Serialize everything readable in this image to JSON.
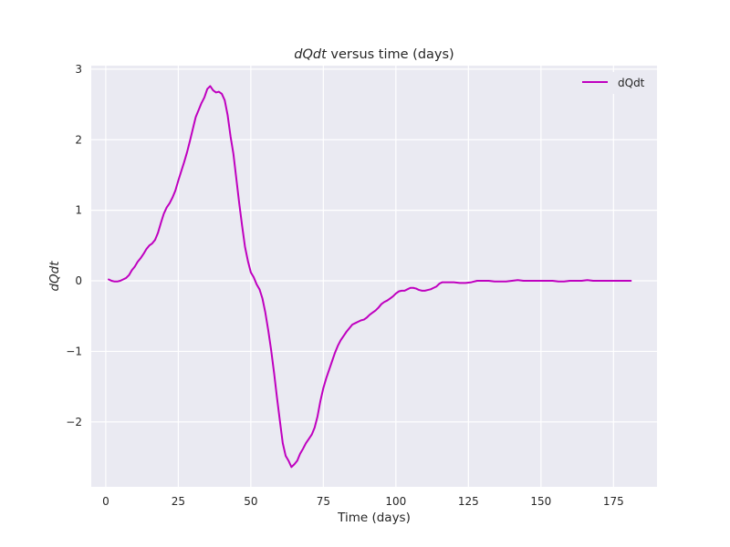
{
  "chart_data": {
    "type": "line",
    "title_math": "dQdt",
    "title_text": " versus time (days)",
    "xlabel": "Time (days)",
    "ylabel": "dQdt",
    "xlim": [
      -5,
      190
    ],
    "ylim": [
      -2.92,
      3.05
    ],
    "x_ticks": [
      0,
      25,
      50,
      75,
      100,
      125,
      150,
      175
    ],
    "x_tick_labels": [
      "0",
      "25",
      "50",
      "75",
      "100",
      "125",
      "150",
      "175"
    ],
    "y_ticks": [
      -2,
      -1,
      0,
      1,
      2,
      3
    ],
    "y_tick_labels": [
      "−2",
      "−1",
      "0",
      "1",
      "2",
      "3"
    ],
    "grid": true,
    "background": "#eaeaf2",
    "legend_position": "upper right",
    "series": [
      {
        "name": "dQdt",
        "color": "#bf00bf",
        "x": [
          1,
          2,
          3,
          4,
          5,
          6,
          7,
          8,
          9,
          10,
          11,
          12,
          13,
          14,
          15,
          16,
          17,
          18,
          19,
          20,
          21,
          22,
          23,
          24,
          25,
          26,
          27,
          28,
          29,
          30,
          31,
          32,
          33,
          34,
          35,
          36,
          37,
          38,
          39,
          40,
          41,
          42,
          43,
          44,
          45,
          46,
          47,
          48,
          49,
          50,
          51,
          52,
          53,
          54,
          55,
          56,
          57,
          58,
          59,
          60,
          61,
          62,
          63,
          64,
          65,
          66,
          67,
          68,
          69,
          70,
          71,
          72,
          73,
          74,
          75,
          76,
          77,
          78,
          79,
          80,
          81,
          82,
          83,
          84,
          85,
          86,
          87,
          88,
          89,
          90,
          91,
          92,
          93,
          94,
          95,
          96,
          97,
          98,
          99,
          100,
          101,
          102,
          103,
          104,
          105,
          106,
          107,
          108,
          109,
          110,
          111,
          112,
          113,
          114,
          115,
          116,
          117,
          118,
          119,
          120,
          122,
          124,
          126,
          128,
          130,
          132,
          134,
          136,
          138,
          140,
          142,
          144,
          146,
          148,
          150,
          152,
          154,
          156,
          158,
          160,
          162,
          164,
          166,
          168,
          170,
          172,
          174,
          176,
          178,
          181
        ],
        "y": [
          0.02,
          0.0,
          -0.01,
          -0.01,
          0.0,
          0.02,
          0.04,
          0.08,
          0.15,
          0.2,
          0.27,
          0.32,
          0.38,
          0.45,
          0.5,
          0.53,
          0.58,
          0.68,
          0.82,
          0.95,
          1.04,
          1.1,
          1.18,
          1.28,
          1.42,
          1.55,
          1.68,
          1.82,
          1.98,
          2.15,
          2.32,
          2.42,
          2.52,
          2.6,
          2.72,
          2.76,
          2.7,
          2.67,
          2.68,
          2.65,
          2.56,
          2.35,
          2.05,
          1.8,
          1.45,
          1.1,
          0.78,
          0.48,
          0.28,
          0.12,
          0.05,
          -0.05,
          -0.12,
          -0.25,
          -0.45,
          -0.7,
          -0.98,
          -1.3,
          -1.65,
          -1.98,
          -2.3,
          -2.48,
          -2.55,
          -2.64,
          -2.6,
          -2.55,
          -2.45,
          -2.38,
          -2.3,
          -2.24,
          -2.18,
          -2.08,
          -1.92,
          -1.7,
          -1.52,
          -1.38,
          -1.26,
          -1.14,
          -1.02,
          -0.92,
          -0.84,
          -0.78,
          -0.72,
          -0.67,
          -0.62,
          -0.6,
          -0.58,
          -0.56,
          -0.55,
          -0.52,
          -0.48,
          -0.45,
          -0.42,
          -0.38,
          -0.33,
          -0.3,
          -0.28,
          -0.25,
          -0.22,
          -0.18,
          -0.15,
          -0.14,
          -0.14,
          -0.12,
          -0.1,
          -0.1,
          -0.11,
          -0.13,
          -0.14,
          -0.14,
          -0.13,
          -0.12,
          -0.1,
          -0.08,
          -0.04,
          -0.02,
          -0.02,
          -0.02,
          -0.02,
          -0.02,
          -0.03,
          -0.03,
          -0.02,
          0.0,
          0.0,
          0.0,
          -0.01,
          -0.01,
          -0.01,
          0.0,
          0.01,
          0.0,
          0.0,
          0.0,
          0.0,
          0.0,
          0.0,
          -0.01,
          -0.01,
          0.0,
          0.0,
          0.0,
          0.01,
          0.0,
          0.0,
          0.0,
          0.0,
          0.0,
          0.0,
          0.0
        ]
      }
    ]
  }
}
